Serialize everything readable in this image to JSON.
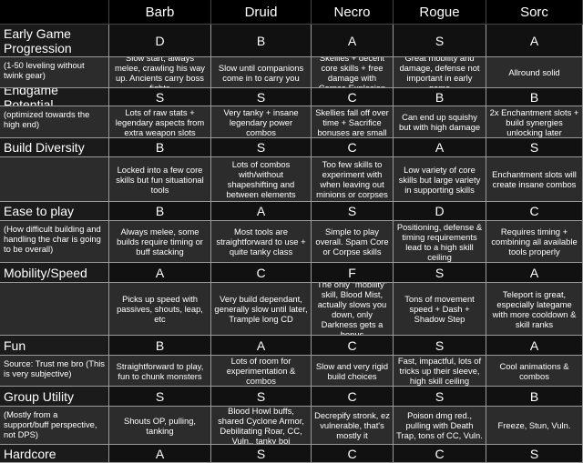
{
  "table": {
    "columns": [
      "Barb",
      "Druid",
      "Necro",
      "Rogue",
      "Sorc"
    ],
    "rows": [
      {
        "category": "Early Game Progression",
        "note": "(1-50 leveling without twink gear)",
        "grades": [
          "D",
          "B",
          "A",
          "S",
          "A"
        ],
        "descriptions": [
          "Slow start, always melee, crawling his way up. Ancients carry boss fights",
          "Slow until companions come in to carry you",
          "Skellies + decent core skills + free damage with Corpse Explosion",
          "Great mobility and damage, defense not important in early game",
          "Allround solid"
        ]
      },
      {
        "category": "Endgame Potential",
        "note": "(optimized towards the high end)",
        "grades": [
          "S",
          "S",
          "C",
          "B",
          "B"
        ],
        "descriptions": [
          "Lots of raw stats + legendary aspects from extra weapon slots",
          "Very tanky + insane legendary power combos",
          "Skellies fall off over time + Sacrifice bonuses are small",
          "Can end up squishy but with high damage",
          "2x Enchantment slots + build synergies unlocking later"
        ]
      },
      {
        "category": "Build Diversity",
        "grades": [
          "B",
          "S",
          "C",
          "A",
          "S"
        ],
        "descriptions": [
          "Locked into a few core skills but fun situational tools",
          "Lots of combos with/without shapeshifting and between elements",
          "Too few skills to experiment with when leaving out minions or corpses",
          "Low variety of core skills but large variety in supporting skills",
          "Enchantment slots will create insane combos"
        ]
      },
      {
        "category": "Ease to play",
        "note": "(How difficult building and handling the char is going to be overall)",
        "grades": [
          "B",
          "A",
          "S",
          "D",
          "C"
        ],
        "descriptions": [
          "Always melee, some builds require timing or buff stacking",
          "Most tools are straightforward to use + quite tanky class",
          "Simple to play overall. Spam Core or Corpse skills",
          "Positioning, defense & timing requirements lead to a high skill ceiling",
          "Requires timing + combining all available tools properly"
        ]
      },
      {
        "category": "Mobility/Speed",
        "grades": [
          "A",
          "C",
          "F",
          "S",
          "A"
        ],
        "descriptions": [
          "Picks up speed with passives, shouts, leap, etc",
          "Very build dependant, generally slow until later, Trample long CD",
          "The only \"mobility\" skill, Blood Mist, actually slows you down, only Darkness gets a bonus",
          "Tons of movement speed + Dash + Shadow Step",
          "Teleport is great, especially lategame with more cooldown & skill ranks"
        ]
      },
      {
        "category": "Fun",
        "note": "Source: Trust me bro (This is very subjective)",
        "grades": [
          "B",
          "A",
          "C",
          "S",
          "A"
        ],
        "descriptions": [
          "Straightforward to play, fun to chunk monsters",
          "Lots of room for experimentation & combos",
          "Slow and very rigid build choices",
          "Fast, impactful, lots of tricks up their sleeve, high skill ceiling",
          "Cool animations & combos"
        ]
      },
      {
        "category": "Group Utility",
        "note": "(Mostly from a support/buff perspective, not DPS)",
        "grades": [
          "S",
          "S",
          "C",
          "S",
          "B"
        ],
        "descriptions": [
          "Shouts OP, pulling, tanking",
          "Blood Howl buffs, shared Cyclone Armor, Debilitating Roar, CC, Vuln., tanky boi",
          "Decrepify stronk, ez vulnerable, that's mostly it",
          "Poison dmg red., pulling with Death Trap, tons of CC, Vuln.",
          "Freeze, Stun, Vuln."
        ]
      },
      {
        "category": "Hardcore",
        "grades": [
          "A",
          "S",
          "C",
          "C",
          "S"
        ]
      }
    ]
  }
}
